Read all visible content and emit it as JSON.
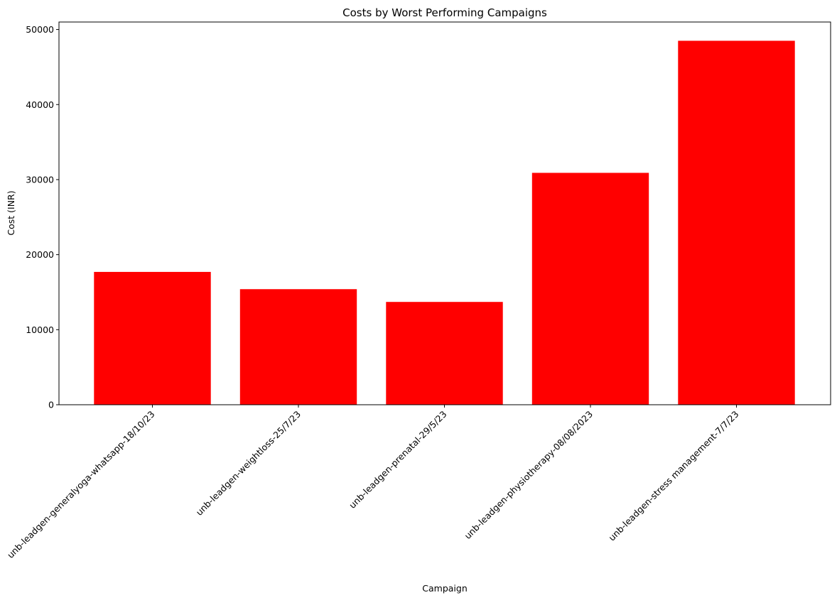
{
  "chart_data": {
    "type": "bar",
    "title": "Costs by Worst Performing Campaigns",
    "xlabel": "Campaign",
    "ylabel": "Cost (INR)",
    "categories": [
      "unb-leadgen-generalyoga-whatsapp-18/10/23",
      "unb-leadgen-weightloss-25/7/23",
      "unb-leadgen-prenatal-29/5/23",
      "unb-leadgen-physiotherapy-08/08/2023",
      "unb-leadgen-stress management-7/7/23"
    ],
    "values": [
      17700,
      15400,
      13700,
      30900,
      48500
    ],
    "ylim": [
      0,
      51000
    ],
    "yticks": [
      0,
      10000,
      20000,
      30000,
      40000,
      50000
    ],
    "bar_color": "#ff0000",
    "grid": false,
    "legend": false
  }
}
